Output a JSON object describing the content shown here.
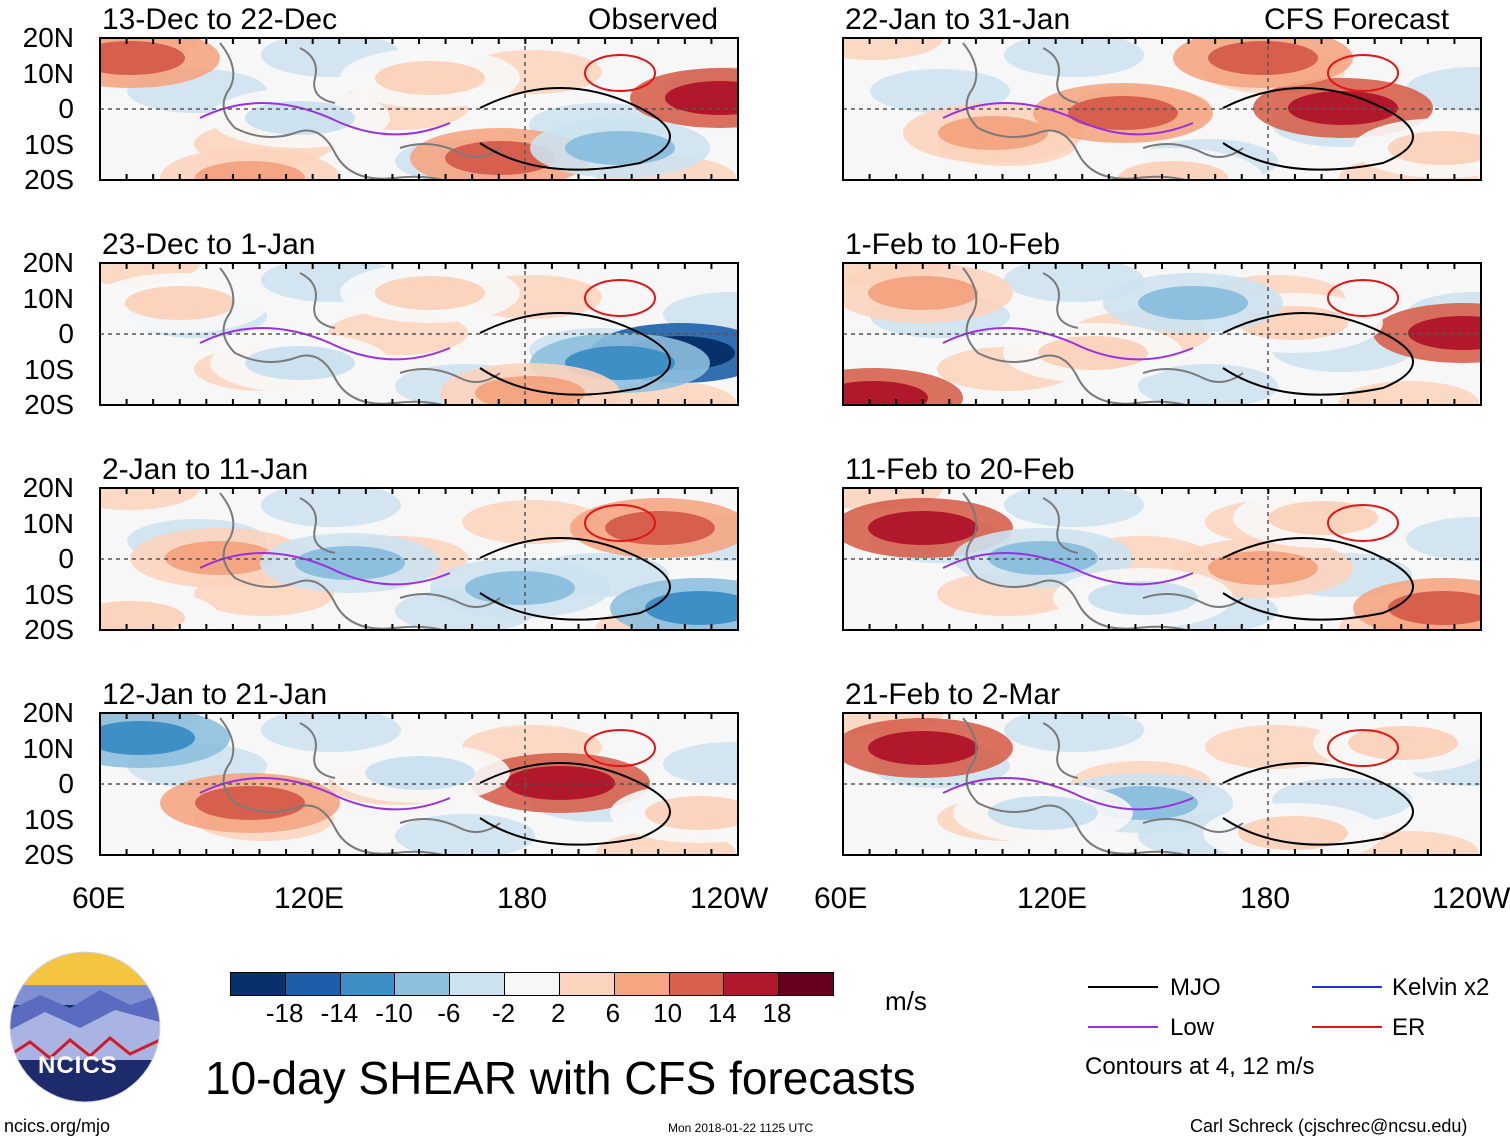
{
  "observed_label": "Observed",
  "forecast_label": "CFS Forecast",
  "observed_panels": [
    "13-Dec to 22-Dec",
    "23-Dec to 1-Jan",
    "2-Jan to 11-Jan",
    "12-Jan to 21-Jan"
  ],
  "forecast_panels": [
    "22-Jan to 31-Jan",
    "1-Feb to 10-Feb",
    "11-Feb to 20-Feb",
    "21-Feb to 2-Mar"
  ],
  "lat_labels": [
    "20N",
    "10N",
    "0",
    "10S",
    "20S"
  ],
  "lon_labels": [
    "60E",
    "120E",
    "180",
    "120W"
  ],
  "colorbar": {
    "labels": [
      "-18",
      "-14",
      "-10",
      "-6",
      "-2",
      "2",
      "6",
      "10",
      "14",
      "18"
    ],
    "colors": [
      "#08306b",
      "#1c5fa8",
      "#3f8fc7",
      "#8dbfde",
      "#cde2f0",
      "#f7f7f7",
      "#fcd3bc",
      "#f4a582",
      "#d6604d",
      "#b2182b",
      "#67001f"
    ],
    "units": "m/s"
  },
  "legend": {
    "mjo": {
      "label": "MJO",
      "color": "#000000"
    },
    "kelvin": {
      "label": "Kelvin x2",
      "color": "#1f2fd6"
    },
    "low": {
      "label": "Low",
      "color": "#9b30e0"
    },
    "er": {
      "label": "ER",
      "color": "#e01515"
    },
    "contours_note": "Contours at 4, 12 m/s"
  },
  "main_title": "10-day SHEAR with CFS forecasts",
  "logo_text": "NCICS",
  "website": "ncics.org/mjo",
  "timestamp": "Mon 2018-01-22 1125 UTC",
  "credit": "Carl Schreck (cjschrec@ncsu.edu)"
}
